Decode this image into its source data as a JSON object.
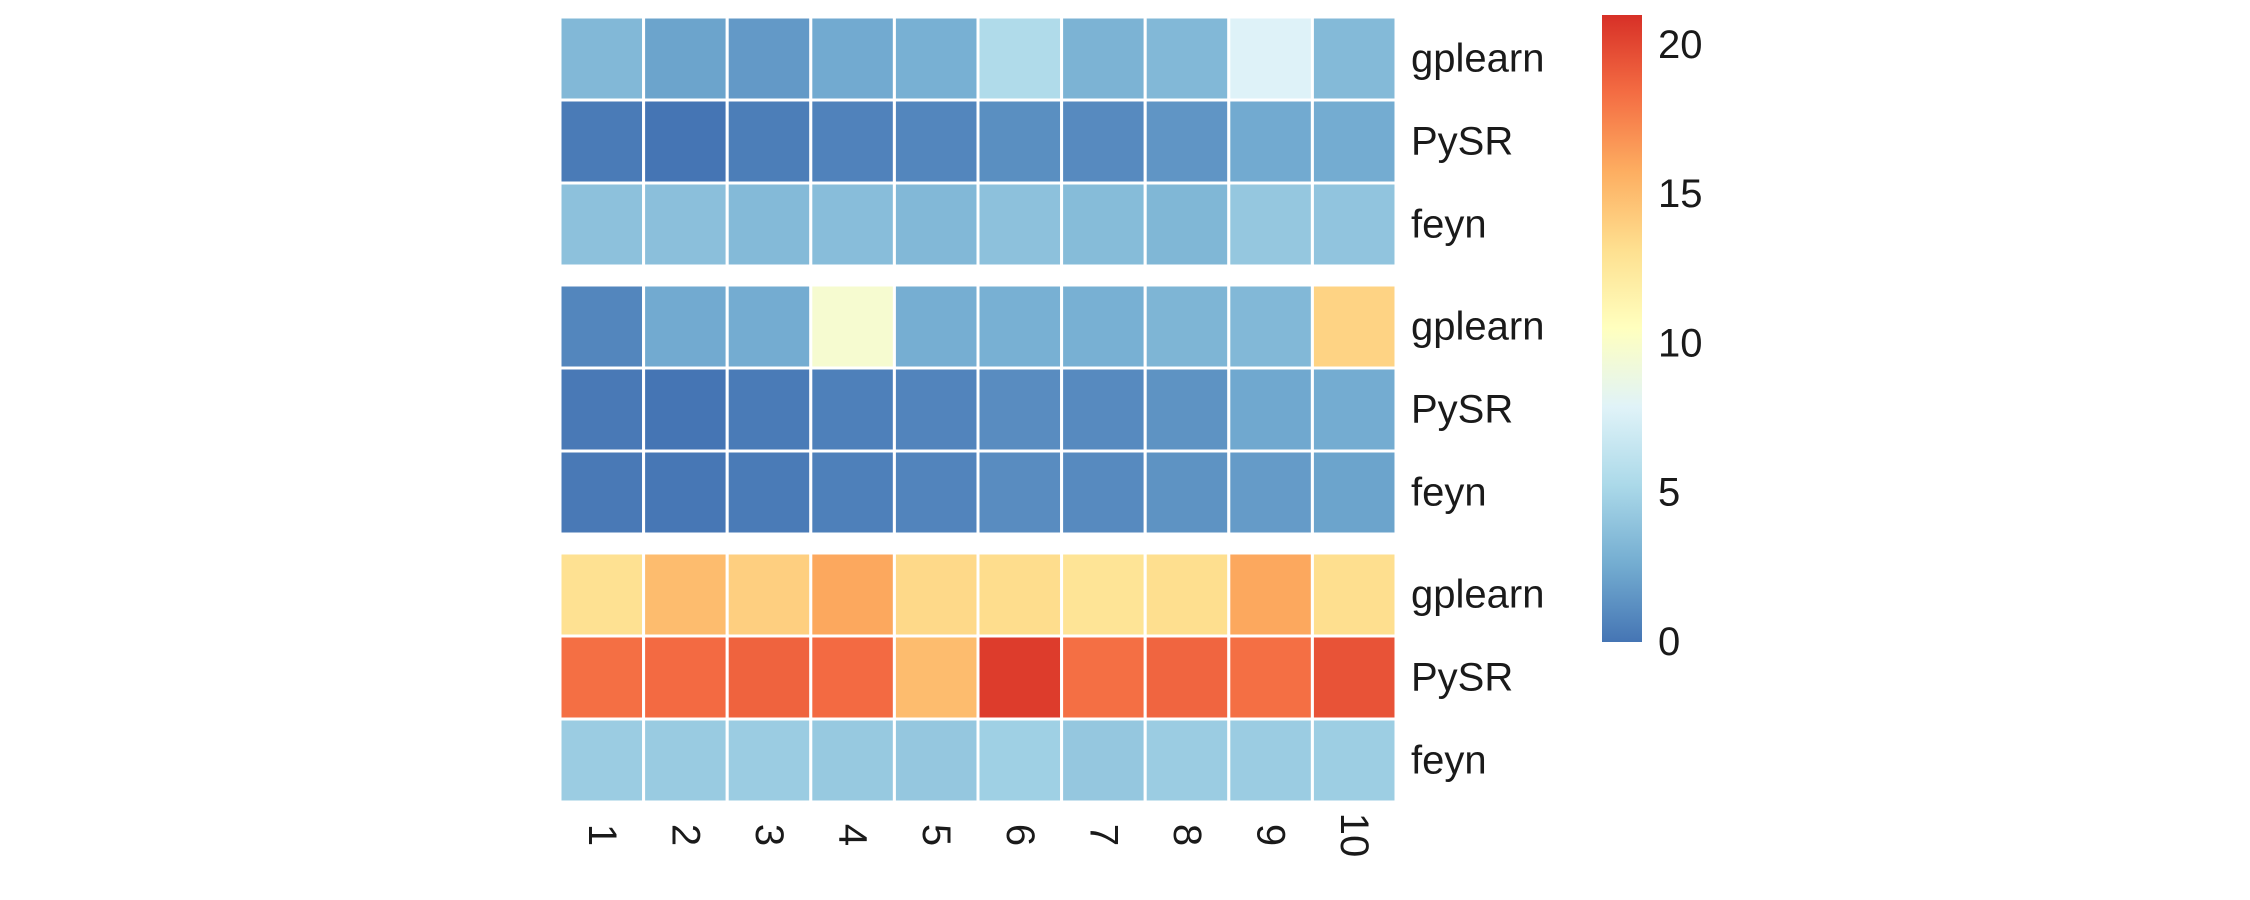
{
  "chart_data": {
    "type": "heatmap",
    "columns": [
      "1",
      "2",
      "3",
      "4",
      "5",
      "6",
      "7",
      "8",
      "9",
      "10"
    ],
    "blocks": [
      {
        "rows": [
          {
            "label": "gplearn",
            "values": [
              3.3,
              2.2,
              1.7,
              2.5,
              2.8,
              5.5,
              3.0,
              3.3,
              7.8,
              3.4
            ]
          },
          {
            "label": "PySR",
            "values": [
              0.3,
              0.0,
              0.4,
              0.6,
              0.8,
              1.2,
              1.0,
              1.5,
              2.5,
              2.6
            ]
          },
          {
            "label": "feyn",
            "values": [
              3.8,
              3.7,
              3.4,
              3.6,
              3.3,
              3.8,
              3.5,
              3.2,
              4.2,
              4.0
            ]
          }
        ]
      },
      {
        "rows": [
          {
            "label": "gplearn",
            "values": [
              0.8,
              2.5,
              2.6,
              9.7,
              2.7,
              2.8,
              2.8,
              3.1,
              3.3,
              13.8
            ]
          },
          {
            "label": "PySR",
            "values": [
              0.2,
              0.0,
              0.3,
              0.5,
              0.7,
              1.1,
              1.0,
              1.4,
              2.4,
              2.6
            ]
          },
          {
            "label": "feyn",
            "values": [
              0.2,
              0.1,
              0.3,
              0.5,
              0.7,
              1.1,
              1.0,
              1.4,
              1.8,
              2.2
            ]
          }
        ]
      },
      {
        "rows": [
          {
            "label": "gplearn",
            "values": [
              13.0,
              15.0,
              14.0,
              16.0,
              13.5,
              13.3,
              12.8,
              13.2,
              16.0,
              13.2
            ]
          },
          {
            "label": "PySR",
            "values": [
              18.3,
              18.5,
              18.8,
              18.5,
              15.0,
              20.5,
              18.3,
              18.7,
              18.3,
              19.5
            ]
          },
          {
            "label": "feyn",
            "values": [
              4.5,
              4.4,
              4.5,
              4.3,
              4.2,
              4.7,
              4.2,
              4.5,
              4.5,
              4.6
            ]
          }
        ]
      }
    ],
    "colorbar": {
      "range": [
        0,
        21
      ],
      "ticks": [
        "0",
        "5",
        "10",
        "15",
        "20"
      ],
      "tick_values": [
        0,
        5,
        10,
        15,
        20
      ],
      "palette": [
        "#4575b4",
        "#74add1",
        "#abd9e9",
        "#e0f3f8",
        "#ffffbf",
        "#fee090",
        "#fdae61",
        "#f46d43",
        "#d73027"
      ]
    },
    "title": "",
    "xlabel": "",
    "ylabel": "",
    "grid": false,
    "legend": "right"
  }
}
